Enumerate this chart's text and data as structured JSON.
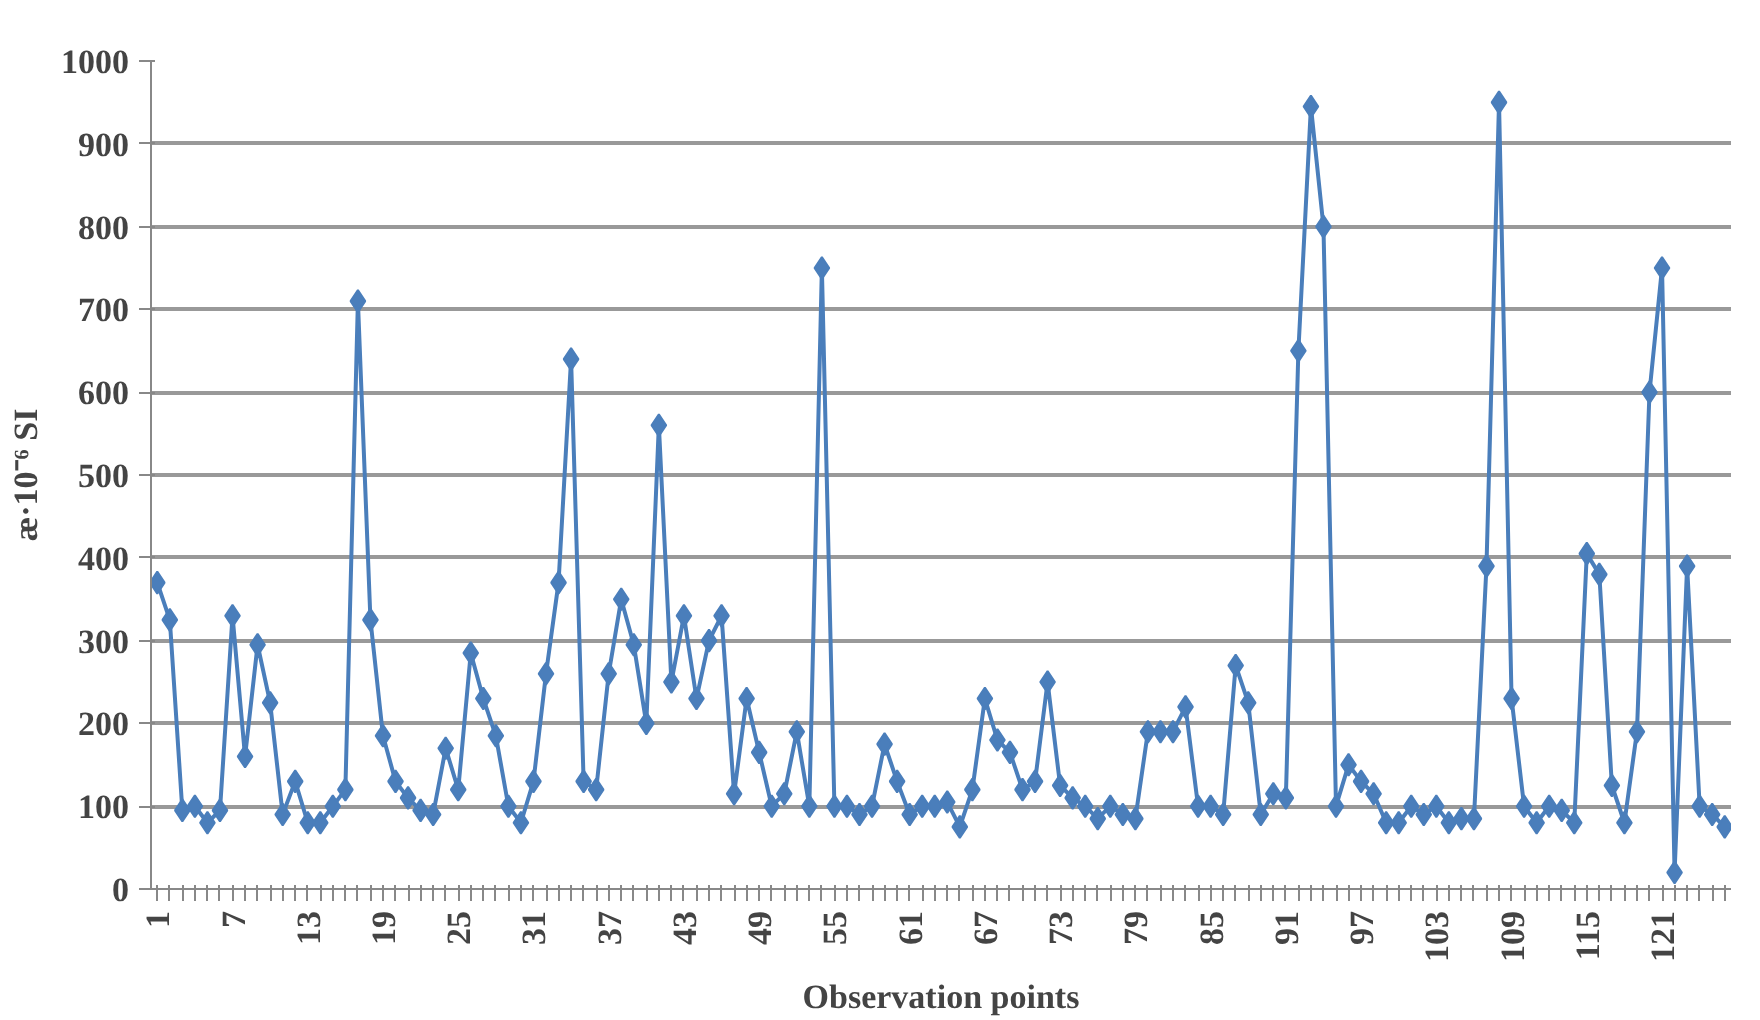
{
  "chart_data": {
    "type": "line",
    "xlabel": "Observation points",
    "ylabel": "æ·10⁻⁶ SI",
    "categories": [
      "1",
      null,
      null,
      null,
      null,
      null,
      "7",
      null,
      null,
      null,
      null,
      null,
      "13",
      null,
      null,
      null,
      null,
      null,
      "19",
      null,
      null,
      null,
      null,
      null,
      "25",
      null,
      null,
      null,
      null,
      null,
      "31",
      null,
      null,
      null,
      null,
      null,
      "37",
      null,
      null,
      null,
      null,
      null,
      "43",
      null,
      null,
      null,
      null,
      null,
      "49",
      null,
      null,
      null,
      null,
      null,
      "55",
      null,
      null,
      null,
      null,
      null,
      "61",
      null,
      null,
      null,
      null,
      null,
      "67",
      null,
      null,
      null,
      null,
      null,
      "73",
      null,
      null,
      null,
      null,
      null,
      "79",
      null,
      null,
      null,
      null,
      null,
      "85",
      null,
      null,
      null,
      null,
      null,
      "91",
      null,
      null,
      null,
      null,
      null,
      "97",
      null,
      null,
      null,
      null,
      null,
      "103",
      null,
      null,
      null,
      null,
      null,
      "109",
      null,
      null,
      null,
      null,
      null,
      "115",
      null,
      null,
      null,
      null,
      null,
      "121",
      null,
      null,
      null,
      null,
      null
    ],
    "series": [
      {
        "color": "#4a7ebb",
        "values": [
          370,
          325,
          95,
          100,
          80,
          95,
          330,
          160,
          295,
          225,
          90,
          130,
          80,
          80,
          100,
          120,
          710,
          325,
          185,
          130,
          110,
          95,
          90,
          170,
          120,
          285,
          230,
          185,
          100,
          80,
          130,
          260,
          370,
          640,
          130,
          120,
          260,
          350,
          295,
          200,
          560,
          250,
          330,
          230,
          300,
          330,
          115,
          230,
          165,
          100,
          115,
          190,
          100,
          750,
          100,
          100,
          90,
          100,
          175,
          130,
          90,
          100,
          100,
          105,
          75,
          120,
          230,
          180,
          165,
          120,
          130,
          250,
          125,
          110,
          100,
          85,
          100,
          90,
          85,
          190,
          190,
          190,
          220,
          100,
          100,
          90,
          270,
          225,
          90,
          115,
          110,
          650,
          945,
          800,
          100,
          150,
          130,
          115,
          80,
          80,
          100,
          90,
          100,
          80,
          85,
          85,
          390,
          950,
          230,
          100,
          80,
          100,
          95,
          80,
          405,
          380,
          125,
          80,
          190,
          600,
          750,
          20,
          390,
          100,
          90,
          75
        ]
      }
    ],
    "ylim": [
      0,
      1000
    ],
    "yticks": [
      0,
      100,
      200,
      300,
      400,
      500,
      600,
      700,
      800,
      900,
      1000
    ],
    "grid": "y",
    "marker": "diamond",
    "line_style": "solid"
  }
}
